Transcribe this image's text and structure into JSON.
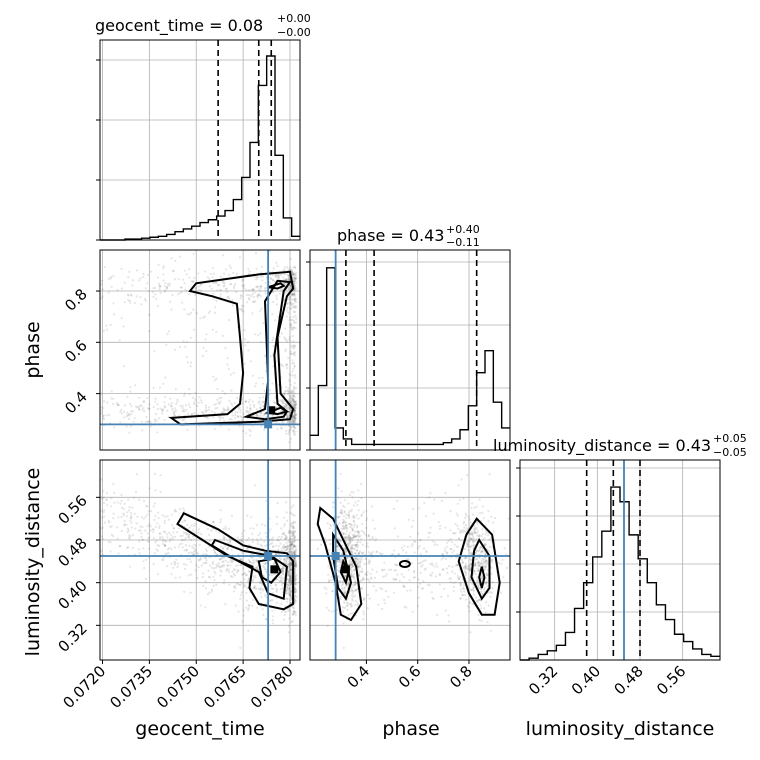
{
  "chart_data": {
    "type": "scatter",
    "parameters": [
      "geocent_time",
      "phase",
      "luminosity_distance"
    ],
    "truths": {
      "geocent_time": 0.0773,
      "phase": 0.28,
      "luminosity_distance": 0.45
    },
    "titles": [
      {
        "param": "geocent_time",
        "text": "geocent_time = 0.08",
        "upper": "+0.00",
        "lower": "−0.00"
      },
      {
        "param": "phase",
        "text": "phase = 0.43",
        "upper": "+0.40",
        "lower": "−0.11"
      },
      {
        "param": "luminosity_distance",
        "text": "luminosity_distance = 0.43",
        "upper": "+0.05",
        "lower": "−0.05"
      }
    ],
    "axis_labels": {
      "x": [
        "geocent_time",
        "phase",
        "luminosity_distance"
      ],
      "y": [
        "phase",
        "luminosity_distance"
      ]
    },
    "ranges": {
      "geocent_time": [
        0.07192,
        0.07832
      ],
      "phase": [
        0.18,
        0.96
      ],
      "luminosity_distance": [
        0.255,
        0.63
      ]
    },
    "ticks": {
      "geocent_time": [
        "0.0720",
        "0.0735",
        "0.0750",
        "0.0765",
        "0.0780"
      ],
      "phase": [
        "0.4",
        "0.6",
        "0.8"
      ],
      "luminosity_distance": [
        "0.32",
        "0.40",
        "0.48",
        "0.56"
      ]
    },
    "quantiles": {
      "geocent_time": [
        0.0757,
        0.077,
        0.0774
      ],
      "phase": [
        0.32,
        0.43,
        0.83
      ],
      "luminosity_distance": [
        0.38,
        0.43,
        0.48
      ]
    },
    "histograms": {
      "geocent_time": {
        "edges": [
          0.07192,
          0.07832
        ],
        "counts": [
          0,
          0,
          0,
          0.005,
          0.005,
          0.01,
          0.015,
          0.02,
          0.03,
          0.045,
          0.06,
          0.075,
          0.095,
          0.11,
          0.13,
          0.16,
          0.22,
          0.34,
          0.53,
          0.84,
          1.0,
          0.46,
          0.12,
          0.02
        ]
      },
      "phase": {
        "edges": [
          0.18,
          0.96
        ],
        "counts": [
          0.08,
          0.35,
          0.99,
          0.12,
          0.06,
          0.03,
          0.03,
          0.03,
          0.03,
          0.03,
          0.03,
          0.03,
          0.03,
          0.03,
          0.03,
          0.03,
          0.04,
          0.06,
          0.11,
          0.24,
          0.42,
          0.54,
          0.26,
          0.12
        ]
      },
      "luminosity_distance": {
        "edges": [
          0.255,
          0.63
        ],
        "counts": [
          0,
          0.01,
          0.03,
          0.05,
          0.08,
          0.15,
          0.28,
          0.42,
          0.56,
          0.7,
          0.94,
          0.86,
          0.68,
          0.55,
          0.42,
          0.3,
          0.22,
          0.14,
          0.1,
          0.06,
          0.03,
          0.02
        ]
      }
    }
  }
}
